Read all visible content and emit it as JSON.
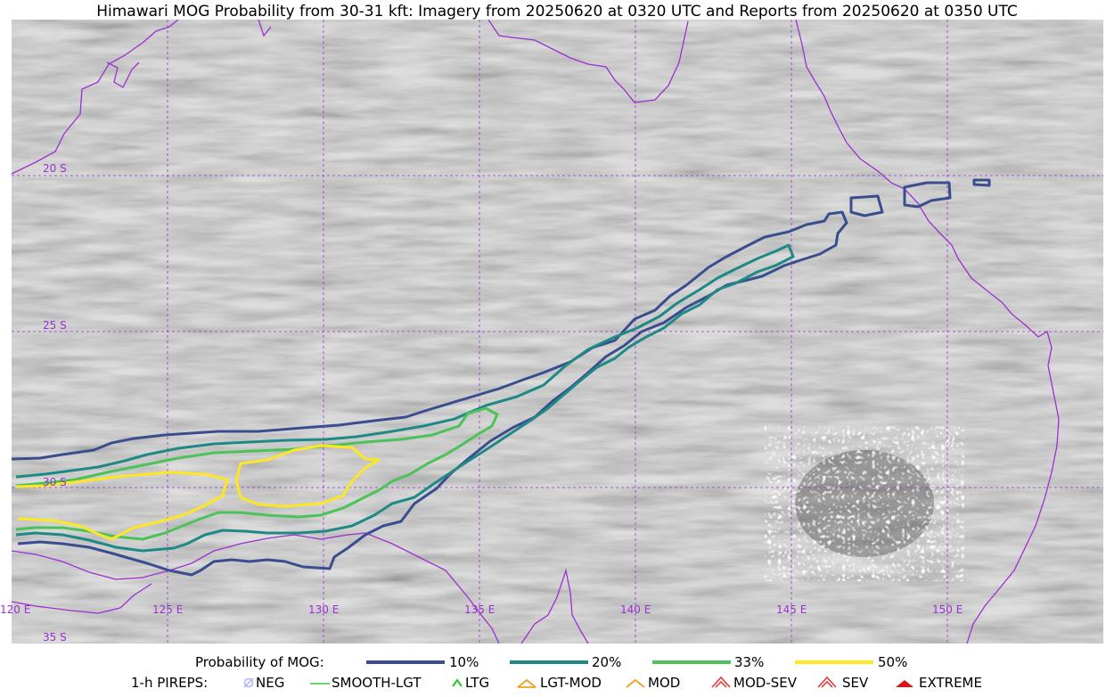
{
  "title": "Himawari MOG Probability from 30-31 kft: Imagery from 20250620 at 0320 UTC and Reports from 20250620 at 0350 UTC",
  "map": {
    "graticule_labels": {
      "lat": [
        "20 S",
        "25 S",
        "30 S",
        "35 S"
      ],
      "lon": [
        "120 E",
        "125 E",
        "130 E",
        "135 E",
        "140 E",
        "145 E",
        "150 E"
      ]
    },
    "colors": {
      "coastline": "#9b30d0",
      "grid": "#9b30d0",
      "p10": "#3a4d8f",
      "p20": "#1f8a85",
      "p33": "#4cc25a",
      "p50": "#fde725"
    }
  },
  "legend": {
    "prob_title": "Probability of MOG:",
    "prob_items": [
      {
        "label": "10%",
        "color": "#3a4d8f"
      },
      {
        "label": "20%",
        "color": "#1f8a85"
      },
      {
        "label": "33%",
        "color": "#4cc25a"
      },
      {
        "label": "50%",
        "color": "#fde725"
      }
    ],
    "pirep_title": "1-h PIREPS:",
    "pirep_items": [
      {
        "label": "NEG",
        "icon": "neg-icon",
        "color": "#b0b0ff"
      },
      {
        "label": "SMOOTH-LGT",
        "icon": "smooth-lgt-icon",
        "color": "#3cc83c"
      },
      {
        "label": "LTG",
        "icon": "ltg-icon",
        "color": "#22cc22"
      },
      {
        "label": "LGT-MOD",
        "icon": "lgt-mod-icon",
        "color": "#f0a020"
      },
      {
        "label": "MOD",
        "icon": "mod-icon",
        "color": "#f0a020"
      },
      {
        "label": "MOD-SEV",
        "icon": "mod-sev-icon",
        "color": "#e83030"
      },
      {
        "label": "SEV",
        "icon": "sev-icon",
        "color": "#e83030"
      },
      {
        "label": "EXTREME",
        "icon": "extreme-icon",
        "color": "#e01010"
      }
    ]
  }
}
